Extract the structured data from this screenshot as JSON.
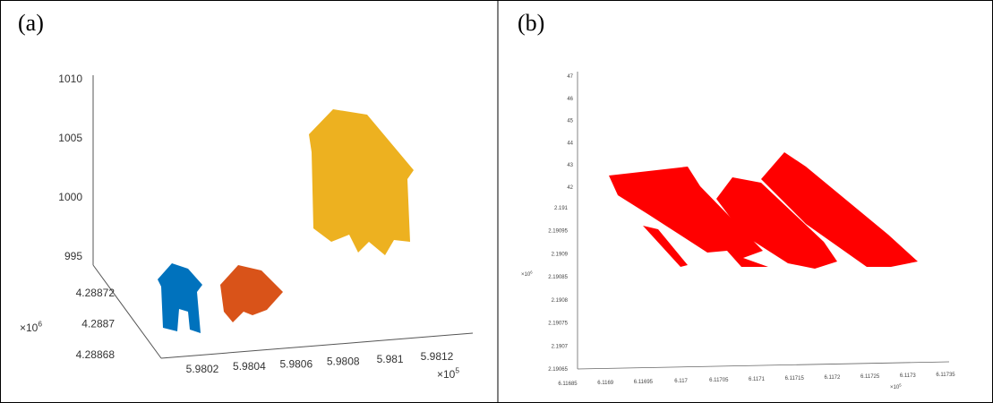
{
  "panels": [
    {
      "label": "(a)",
      "z_ticks": [
        "1010",
        "1005",
        "1000",
        "995"
      ],
      "y_ticks": [
        "4.28872",
        "4.2887",
        "4.28868"
      ],
      "x_ticks": [
        "5.9802",
        "5.9804",
        "5.9806",
        "5.9808",
        "5.981",
        "5.9812"
      ],
      "y_multiplier": {
        "base": "×10",
        "exp": "6"
      },
      "x_multiplier": {
        "base": "×10",
        "exp": "5"
      }
    },
    {
      "label": "(b)",
      "z_ticks": [
        "47",
        "46",
        "45",
        "44",
        "43",
        "42"
      ],
      "y_ticks": [
        "2.191",
        "2.19095",
        "2.1909",
        "2.19085",
        "2.1908",
        "2.19075",
        "2.1907",
        "2.19065"
      ],
      "x_ticks": [
        "6.11685",
        "6.1169",
        "6.11695",
        "6.117",
        "6.11705",
        "6.1171",
        "6.11715",
        "6.1172",
        "6.11725",
        "6.1173",
        "6.11735"
      ],
      "y_multiplier": {
        "base": "×10",
        "exp": "6"
      },
      "x_multiplier": {
        "base": "×10",
        "exp": "5"
      }
    }
  ]
}
